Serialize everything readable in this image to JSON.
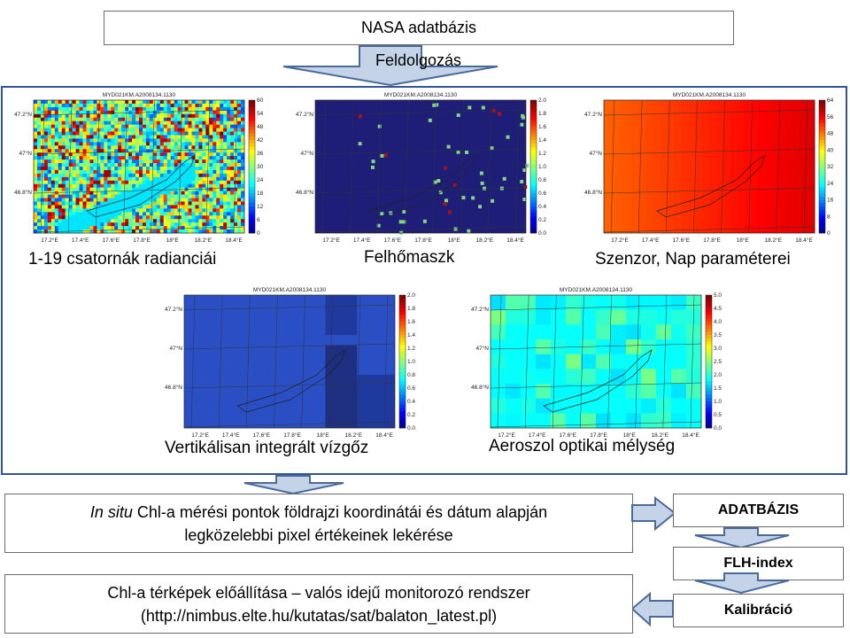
{
  "source_box": "NASA adatbázis",
  "process_label": "Feldolgozás",
  "maps": [
    {
      "title": "MYD021KM.A2008134.1130",
      "caption": "1-19 csatornák radianciái",
      "cbar_label": "B1",
      "cbar_ticks": [
        "60",
        "54",
        "48",
        "42",
        "36",
        "30",
        "24",
        "18",
        "12",
        "6",
        "0"
      ]
    },
    {
      "title": "MYD021KM.A2008134.1130",
      "caption": "Felhőmaszk",
      "cbar_label": "CloudMask",
      "cbar_ticks": [
        "2.0",
        "1.8",
        "1.6",
        "1.4",
        "1.2",
        "1.0",
        "0.8",
        "0.6",
        "0.4",
        "0.2",
        "0.0"
      ]
    },
    {
      "title": "MYD021KM.A2008134.1130",
      "caption": "Szenzor, Nap paraméterei",
      "cbar_label": "SenZen",
      "cbar_ticks": [
        "64",
        "56",
        "48",
        "40",
        "32",
        "24",
        "16",
        "8",
        "0"
      ]
    },
    {
      "title": "MYD021KM.A2008134.1130",
      "caption": "Vertikálisan integrált vízgőz",
      "cbar_label": "aod",
      "cbar_ticks": [
        "2.0",
        "1.8",
        "1.6",
        "1.4",
        "1.2",
        "1.0",
        "0.8",
        "0.6",
        "0.4",
        "0.2",
        "0.0"
      ]
    },
    {
      "title": "MYD021KM.A2008134.1130",
      "caption": "Aeroszol optikai mélység",
      "cbar_label": "vw",
      "cbar_ticks": [
        "5.0",
        "4.5",
        "4.0",
        "3.5",
        "3.0",
        "2.5",
        "2.0",
        "1.5",
        "1.0",
        "0.5",
        "0.0"
      ]
    }
  ],
  "lat_ticks": [
    "47.2°N",
    "47°N",
    "46.8°N"
  ],
  "lon_ticks": [
    "17.2°E",
    "17.4°E",
    "17.6°E",
    "17.8°E",
    "18°E",
    "18.2°E",
    "18.4°E"
  ],
  "insitu_italic": "In situ",
  "insitu_line1_rest": " Chl-a mérési pontok földrajzi koordinátái és dátum alapján",
  "insitu_line2": "legközelebbi pixel értékeinek lekérése",
  "chl_line1": "Chl-a térképek előállítása – valós idejű monitorozó rendszer",
  "chl_line2": "(http://nimbus.elte.hu/kutatas/sat/balaton_latest.pl)",
  "db_label": "ADATBÁZIS",
  "flh_label": "FLH-index",
  "calib_label": "Kalibráció",
  "colors": {
    "panel_border": "#2f5597",
    "arrow_fill": "#c5d3e8",
    "arrow_stroke": "#4a6a9b"
  }
}
